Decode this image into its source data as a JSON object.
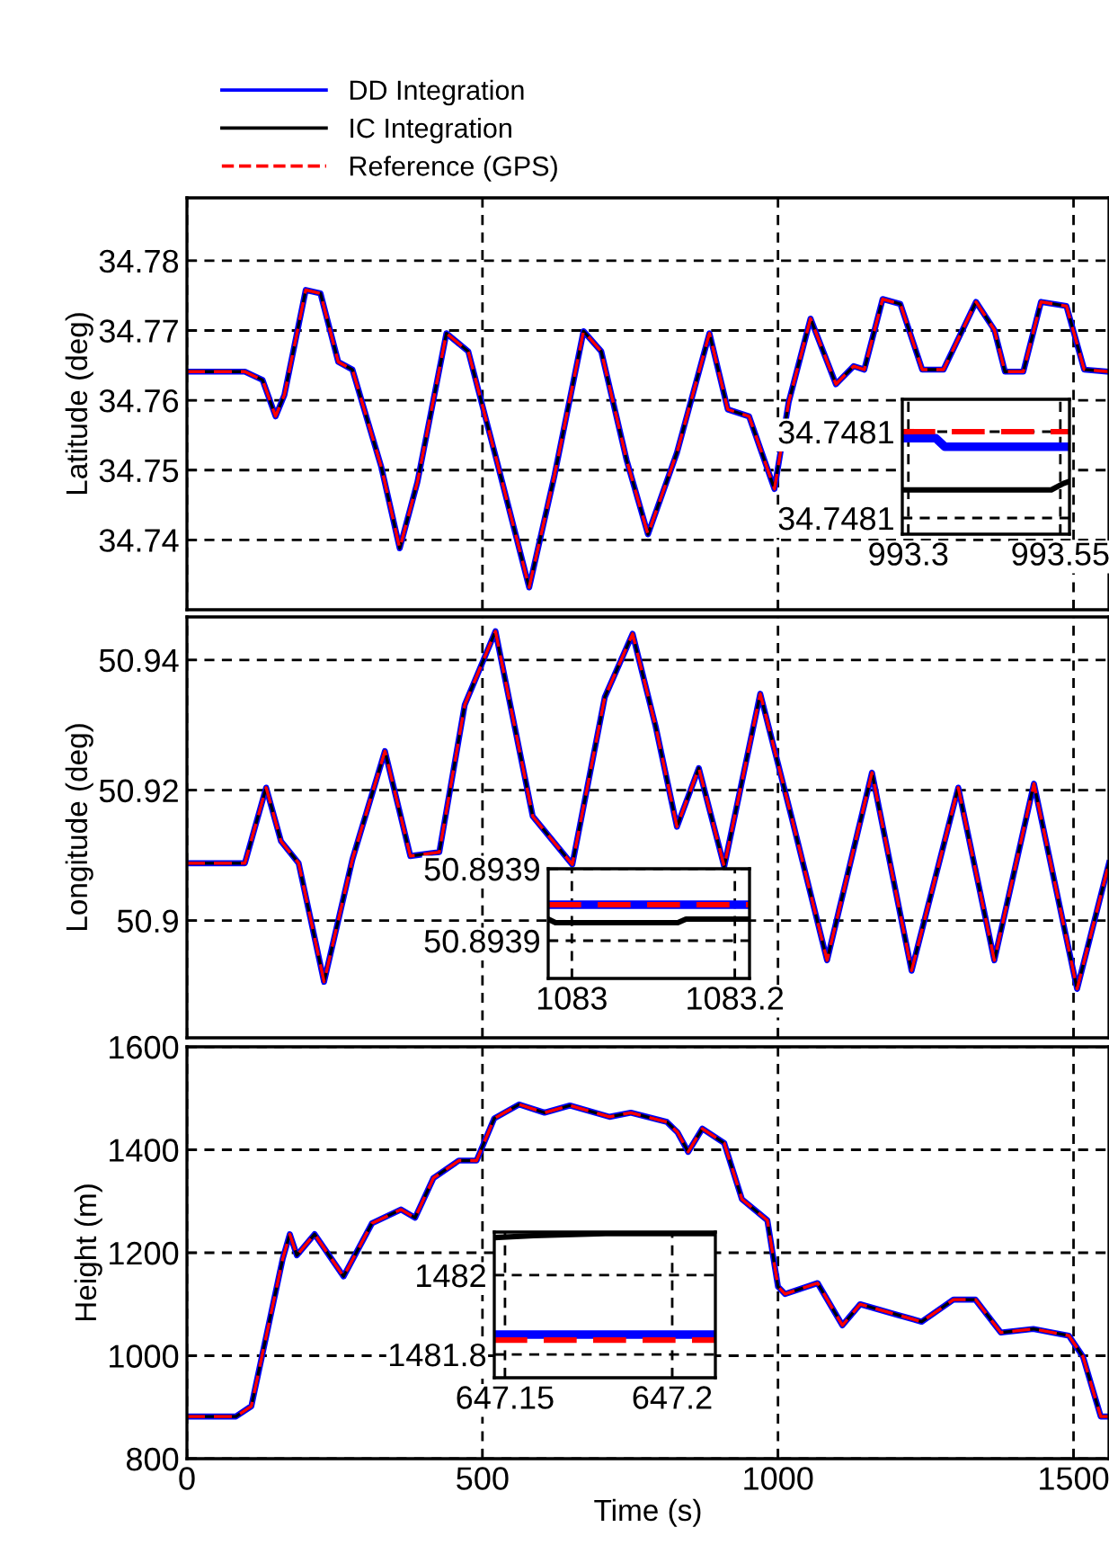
{
  "chart_data": [
    {
      "type": "line",
      "ylabel": "Latitude (deg)",
      "xlim": [
        0,
        1560
      ],
      "ylim": [
        34.73,
        34.789
      ],
      "xticks": [
        0,
        500,
        1000,
        1500
      ],
      "yticks": [
        34.74,
        34.75,
        34.76,
        34.77,
        34.78
      ],
      "grid": true,
      "legend": "top",
      "tick_labels": "y",
      "x": [
        0,
        98,
        128,
        150,
        165,
        201,
        226,
        256,
        280,
        329,
        360,
        390,
        439,
        476,
        524,
        579,
        622,
        671,
        701,
        744,
        780,
        829,
        884,
        915,
        951,
        994,
        1018,
        1055,
        1098,
        1128,
        1146,
        1177,
        1207,
        1244,
        1280,
        1335,
        1366,
        1384,
        1415,
        1445,
        1488,
        1518,
        1560
      ],
      "series": [
        {
          "name": "DD Integration",
          "color": "#0000ff",
          "line_style": "solid",
          "values": [
            34.7641,
            34.7641,
            34.7629,
            34.7577,
            34.7608,
            34.7758,
            34.7753,
            34.7655,
            34.7644,
            34.7504,
            34.7388,
            34.7483,
            34.7696,
            34.767,
            34.7514,
            34.7332,
            34.7493,
            34.7699,
            34.767,
            34.7514,
            34.7408,
            34.7525,
            34.7696,
            34.7587,
            34.7577,
            34.7473,
            34.7597,
            34.7717,
            34.7623,
            34.7649,
            34.7644,
            34.7745,
            34.7738,
            34.7644,
            34.7644,
            34.7741,
            34.7701,
            34.7641,
            34.7641,
            34.7741,
            34.7735,
            34.7644,
            34.7641
          ]
        },
        {
          "name": "IC Integration",
          "color": "#000000",
          "line_style": "solid",
          "values": [
            34.7641,
            34.7641,
            34.7629,
            34.7577,
            34.7608,
            34.7758,
            34.7753,
            34.7655,
            34.7644,
            34.7504,
            34.7388,
            34.7483,
            34.7696,
            34.767,
            34.7514,
            34.7332,
            34.7493,
            34.7699,
            34.767,
            34.7514,
            34.7408,
            34.7525,
            34.7696,
            34.7587,
            34.7577,
            34.7473,
            34.7597,
            34.7717,
            34.7623,
            34.7649,
            34.7644,
            34.7745,
            34.7738,
            34.7644,
            34.7644,
            34.7741,
            34.7701,
            34.7641,
            34.7641,
            34.7741,
            34.7735,
            34.7644,
            34.7641
          ]
        },
        {
          "name": "Reference (GPS)",
          "color": "#ff0000",
          "line_style": "dashed",
          "values": [
            34.7641,
            34.7641,
            34.7629,
            34.7577,
            34.7608,
            34.7758,
            34.7753,
            34.7655,
            34.7644,
            34.7504,
            34.7388,
            34.7483,
            34.7696,
            34.767,
            34.7514,
            34.7332,
            34.7493,
            34.7699,
            34.767,
            34.7514,
            34.7408,
            34.7525,
            34.7696,
            34.7587,
            34.7577,
            34.7473,
            34.7597,
            34.7717,
            34.7623,
            34.7649,
            34.7644,
            34.7745,
            34.7738,
            34.7644,
            34.7644,
            34.7741,
            34.7701,
            34.7641,
            34.7641,
            34.7741,
            34.7735,
            34.7644,
            34.7641
          ]
        }
      ]
    },
    {
      "type": "line",
      "xlim": [
        993.29,
        993.565
      ],
      "ylim": [
        34.7480725,
        34.748135
      ],
      "xticks": [
        993.3,
        993.55
      ],
      "yticks": [
        {
          "value": 34.74808,
          "label": "34.7481"
        },
        {
          "value": 34.74812,
          "label": "34.7481"
        }
      ],
      "grid": true,
      "series": [
        {
          "color": "#0000ff",
          "line_style": "solid",
          "x": [
            993.29,
            993.345,
            993.36,
            993.565
          ],
          "values": [
            34.748117,
            34.748117,
            34.748113,
            34.748113
          ]
        },
        {
          "color": "#000000",
          "line_style": "solid",
          "x": [
            993.29,
            993.535,
            993.555,
            993.565
          ],
          "values": [
            34.748093,
            34.748093,
            34.748096,
            34.748097
          ]
        },
        {
          "color": "#ff0000",
          "line_style": "dashed",
          "x": [
            993.29,
            993.565
          ],
          "values": [
            34.74812,
            34.74812
          ]
        }
      ]
    },
    {
      "type": "line",
      "ylabel": "Longitude (deg)",
      "xlim": [
        0,
        1560
      ],
      "ylim": [
        50.882,
        50.9466
      ],
      "xticks": [
        0,
        500,
        1000,
        1500
      ],
      "yticks": [
        50.9,
        50.92,
        50.94
      ],
      "grid": true,
      "tick_labels": "y",
      "x": [
        0,
        98,
        134,
        159,
        189,
        232,
        280,
        335,
        378,
        427,
        470,
        522,
        585,
        652,
        707,
        754,
        793,
        829,
        866,
        909,
        970,
        1024,
        1083,
        1159,
        1226,
        1305,
        1366,
        1433,
        1506,
        1560
      ],
      "series": [
        {
          "color": "#0000ff",
          "line_style": "solid",
          "values": [
            50.9088,
            50.9088,
            50.9204,
            50.9122,
            50.9088,
            50.8906,
            50.9094,
            50.926,
            50.9099,
            50.9105,
            50.9331,
            50.9444,
            50.916,
            50.9086,
            50.9343,
            50.944,
            50.9298,
            50.9144,
            50.9234,
            50.9083,
            50.9348,
            50.9155,
            50.8939,
            50.9227,
            50.8923,
            50.9204,
            50.8939,
            50.921,
            50.8895,
            50.9088
          ]
        },
        {
          "color": "#000000",
          "line_style": "solid",
          "values": [
            50.9088,
            50.9088,
            50.9204,
            50.9122,
            50.9088,
            50.8906,
            50.9094,
            50.926,
            50.9099,
            50.9105,
            50.9331,
            50.9444,
            50.916,
            50.9086,
            50.9343,
            50.944,
            50.9298,
            50.9144,
            50.9234,
            50.9083,
            50.9348,
            50.9155,
            50.8939,
            50.9227,
            50.8923,
            50.9204,
            50.8939,
            50.921,
            50.8895,
            50.9088
          ]
        },
        {
          "color": "#ff0000",
          "line_style": "dashed",
          "values": [
            50.9088,
            50.9088,
            50.9204,
            50.9122,
            50.9088,
            50.8906,
            50.9094,
            50.926,
            50.9099,
            50.9105,
            50.9331,
            50.9444,
            50.916,
            50.9086,
            50.9343,
            50.944,
            50.9298,
            50.9144,
            50.9234,
            50.9083,
            50.9348,
            50.9155,
            50.8939,
            50.9227,
            50.8923,
            50.9204,
            50.8939,
            50.921,
            50.8895,
            50.9088
          ]
        }
      ]
    },
    {
      "type": "line",
      "xlim": [
        1082.971,
        1083.218
      ],
      "ylim": [
        50.893859,
        50.89392
      ],
      "xticks": [
        1083,
        1083.2
      ],
      "yticks": [
        {
          "value": 50.89388,
          "label": "50.8939"
        },
        {
          "value": 50.89392,
          "label": "50.8939"
        }
      ],
      "grid": true,
      "series": [
        {
          "color": "#0000ff",
          "line_style": "solid",
          "x": [
            1082.971,
            1083.218
          ],
          "values": [
            50.8939,
            50.8939
          ]
        },
        {
          "color": "#000000",
          "line_style": "solid",
          "x": [
            1082.971,
            1082.98,
            1083.13,
            1083.14,
            1083.218
          ],
          "values": [
            50.893892,
            50.89389,
            50.89389,
            50.893892,
            50.893892
          ]
        },
        {
          "color": "#ff0000",
          "line_style": "dashed",
          "x": [
            1082.971,
            1083.218
          ],
          "values": [
            50.8939,
            50.8939
          ]
        }
      ]
    },
    {
      "type": "line",
      "ylabel": "Height (m)",
      "xlabel": "Time (s)",
      "xlim": [
        0,
        1560
      ],
      "ylim": [
        800,
        1600
      ],
      "xticks": [
        0,
        500,
        1000,
        1500
      ],
      "yticks": [
        800,
        1000,
        1200,
        1400,
        1600
      ],
      "grid": true,
      "x": [
        0,
        83,
        109,
        162,
        174,
        186,
        216,
        265,
        313,
        362,
        386,
        417,
        460,
        490,
        520,
        562,
        605,
        648,
        715,
        751,
        812,
        830,
        848,
        872,
        909,
        939,
        982,
        1000,
        1012,
        1067,
        1109,
        1139,
        1200,
        1243,
        1297,
        1334,
        1377,
        1432,
        1492,
        1516,
        1546,
        1560
      ],
      "series": [
        {
          "color": "#0000ff",
          "line_style": "solid",
          "values": [
            882,
            882,
            902,
            1188,
            1236,
            1195,
            1236,
            1154,
            1257,
            1284,
            1268,
            1345,
            1379,
            1379,
            1461,
            1488,
            1472,
            1486,
            1464,
            1472,
            1454,
            1434,
            1396,
            1441,
            1413,
            1304,
            1263,
            1134,
            1120,
            1141,
            1059,
            1100,
            1080,
            1066,
            1109,
            1109,
            1045,
            1052,
            1039,
            998,
            882,
            882
          ]
        },
        {
          "color": "#000000",
          "line_style": "solid",
          "values": [
            882,
            882,
            902,
            1188,
            1236,
            1195,
            1236,
            1154,
            1257,
            1284,
            1268,
            1345,
            1379,
            1379,
            1461,
            1488,
            1472,
            1486,
            1464,
            1472,
            1454,
            1434,
            1396,
            1441,
            1413,
            1304,
            1263,
            1134,
            1120,
            1141,
            1059,
            1100,
            1080,
            1066,
            1109,
            1109,
            1045,
            1052,
            1039,
            998,
            882,
            882
          ]
        },
        {
          "color": "#ff0000",
          "line_style": "dashed",
          "values": [
            882,
            882,
            902,
            1188,
            1236,
            1195,
            1236,
            1154,
            1257,
            1284,
            1268,
            1345,
            1379,
            1379,
            1461,
            1488,
            1472,
            1486,
            1464,
            1472,
            1454,
            1434,
            1396,
            1441,
            1413,
            1304,
            1263,
            1134,
            1120,
            1141,
            1059,
            1100,
            1080,
            1066,
            1109,
            1109,
            1045,
            1052,
            1039,
            998,
            882,
            882
          ]
        }
      ]
    },
    {
      "type": "line",
      "xlim": [
        647.1468,
        647.2129
      ],
      "ylim": [
        1481.741,
        1482.109
      ],
      "xticks": [
        647.15,
        647.2
      ],
      "yticks": [
        1481.8,
        1482
      ],
      "grid": true,
      "series": [
        {
          "color": "#0000ff",
          "line_style": "solid",
          "x": [
            647.1468,
            647.2129
          ],
          "values": [
            1481.85,
            1481.85
          ]
        },
        {
          "color": "#000000",
          "line_style": "solid",
          "x": [
            647.1468,
            647.1586,
            647.18,
            647.2129
          ],
          "values": [
            1482.095,
            1482.1,
            1482.105,
            1482.105
          ]
        },
        {
          "color": "#ff0000",
          "line_style": "dashed",
          "x": [
            647.1468,
            647.2129
          ],
          "values": [
            1481.836,
            1481.836
          ]
        }
      ]
    }
  ]
}
